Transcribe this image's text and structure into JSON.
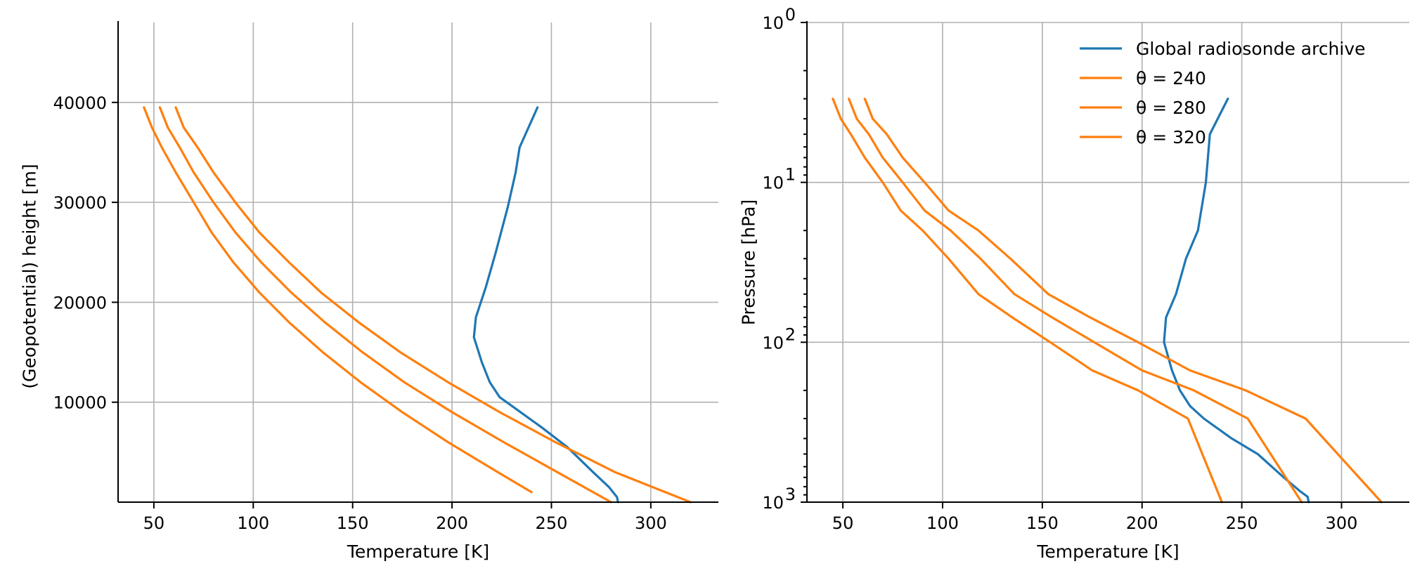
{
  "colors": {
    "sounding": "#1f77b4",
    "dry_adiabat": "#ff7f0e",
    "grid": "#b0b0b0"
  },
  "chart_data": [
    {
      "type": "line",
      "xlabel": "Temperature [K]",
      "ylabel": "(Geopotential) height [m]",
      "xlim": [
        32,
        334
      ],
      "ylim": [
        0,
        48000
      ],
      "x_ticks": [
        50,
        100,
        150,
        200,
        250,
        300
      ],
      "y_ticks": [
        10000,
        20000,
        30000,
        40000
      ],
      "grid": true,
      "series": [
        {
          "name": "Global radiosonde archive",
          "color": "#1f77b4",
          "points": [
            [
              283.5,
              0
            ],
            [
              283,
              500
            ],
            [
              279,
              1500
            ],
            [
              271,
              3000
            ],
            [
              258,
              5500
            ],
            [
              245,
              7500
            ],
            [
              231,
              9500
            ],
            [
              224,
              10500
            ],
            [
              219,
              12000
            ],
            [
              215,
              14000
            ],
            [
              211,
              16500
            ],
            [
              212,
              18500
            ],
            [
              217,
              21500
            ],
            [
              222,
              25000
            ],
            [
              228,
              29500
            ],
            [
              232,
              33000
            ],
            [
              234,
              35500
            ],
            [
              243,
              39500
            ]
          ]
        },
        {
          "name": "θ = 240",
          "color": "#ff7f0e",
          "points": [
            [
              45,
              39500
            ],
            [
              49,
              37500
            ],
            [
              54,
              35500
            ],
            [
              61,
              33000
            ],
            [
              70,
              30000
            ],
            [
              79,
              27000
            ],
            [
              90,
              24000
            ],
            [
              103,
              21000
            ],
            [
              118,
              18000
            ],
            [
              135,
              15000
            ],
            [
              154,
              12000
            ],
            [
              175,
              9000
            ],
            [
              198,
              6000
            ],
            [
              223,
              3000
            ],
            [
              240,
              1000
            ]
          ]
        },
        {
          "name": "θ = 280",
          "color": "#ff7f0e",
          "points": [
            [
              53,
              39500
            ],
            [
              57,
              37500
            ],
            [
              63,
              35500
            ],
            [
              70,
              33000
            ],
            [
              80,
              30000
            ],
            [
              91,
              27000
            ],
            [
              104,
              24000
            ],
            [
              119,
              21000
            ],
            [
              136,
              18000
            ],
            [
              155,
              15000
            ],
            [
              176,
              12000
            ],
            [
              200,
              9000
            ],
            [
              226,
              6000
            ],
            [
              253,
              3000
            ],
            [
              280,
              0
            ]
          ]
        },
        {
          "name": "θ = 320",
          "color": "#ff7f0e",
          "points": [
            [
              61,
              39500
            ],
            [
              65,
              37500
            ],
            [
              72,
              35500
            ],
            [
              80,
              33000
            ],
            [
              91,
              30000
            ],
            [
              103,
              27000
            ],
            [
              118,
              24000
            ],
            [
              134,
              21000
            ],
            [
              153,
              18000
            ],
            [
              174,
              15000
            ],
            [
              198,
              12000
            ],
            [
              224,
              9000
            ],
            [
              252,
              6000
            ],
            [
              282,
              3000
            ],
            [
              320,
              0
            ]
          ]
        }
      ]
    },
    {
      "type": "line",
      "xlabel": "Temperature [K]",
      "ylabel": "Pressure [hPa]",
      "xlim": [
        32,
        334
      ],
      "ylim": [
        1000,
        1
      ],
      "y_scale": "log",
      "y_inverted": true,
      "x_ticks": [
        50,
        100,
        150,
        200,
        250,
        300
      ],
      "y_ticks": [
        {
          "base": "10",
          "exp": "0",
          "value": 1
        },
        {
          "base": "10",
          "exp": "1",
          "value": 10
        },
        {
          "base": "10",
          "exp": "2",
          "value": 100
        },
        {
          "base": "10",
          "exp": "3",
          "value": 1000
        }
      ],
      "grid": true,
      "legend": {
        "placement": "top-right",
        "entries": [
          {
            "label": "Global radiosonde archive",
            "color": "#1f77b4"
          },
          {
            "label": "θ = 240",
            "color": "#ff7f0e"
          },
          {
            "label": "θ = 280",
            "color": "#ff7f0e"
          },
          {
            "label": "θ = 320",
            "color": "#ff7f0e"
          }
        ]
      },
      "series": [
        {
          "name": "Global radiosonde archive",
          "color": "#1f77b4",
          "points": [
            [
              283.5,
              1000
            ],
            [
              283,
              925
            ],
            [
              279,
              850
            ],
            [
              271,
              700
            ],
            [
              258,
              500
            ],
            [
              245,
              400
            ],
            [
              231,
              300
            ],
            [
              224,
              250
            ],
            [
              219,
              200
            ],
            [
              215,
              150
            ],
            [
              211,
              100
            ],
            [
              212,
              70
            ],
            [
              217,
              50
            ],
            [
              222,
              30
            ],
            [
              228,
              20
            ],
            [
              232,
              10
            ],
            [
              234,
              5
            ],
            [
              243,
              3
            ]
          ]
        },
        {
          "name": "θ = 240",
          "color": "#ff7f0e",
          "points": [
            [
              45,
              3
            ],
            [
              49,
              4
            ],
            [
              54,
              5
            ],
            [
              61,
              7
            ],
            [
              70,
              10
            ],
            [
              79,
              15
            ],
            [
              90,
              20
            ],
            [
              103,
              30
            ],
            [
              118,
              50
            ],
            [
              135,
              70
            ],
            [
              154,
              100
            ],
            [
              175,
              150
            ],
            [
              198,
              200
            ],
            [
              223,
              300
            ],
            [
              240,
              1000
            ]
          ]
        },
        {
          "name": "θ = 280",
          "color": "#ff7f0e",
          "points": [
            [
              53,
              3
            ],
            [
              57,
              4
            ],
            [
              63,
              5
            ],
            [
              70,
              7
            ],
            [
              80,
              10
            ],
            [
              91,
              15
            ],
            [
              104,
              20
            ],
            [
              119,
              30
            ],
            [
              136,
              50
            ],
            [
              155,
              70
            ],
            [
              176,
              100
            ],
            [
              200,
              150
            ],
            [
              226,
              200
            ],
            [
              253,
              300
            ],
            [
              280,
              1000
            ]
          ]
        },
        {
          "name": "θ = 320",
          "color": "#ff7f0e",
          "points": [
            [
              61,
              3
            ],
            [
              65,
              4
            ],
            [
              72,
              5
            ],
            [
              80,
              7
            ],
            [
              91,
              10
            ],
            [
              103,
              15
            ],
            [
              118,
              20
            ],
            [
              134,
              30
            ],
            [
              153,
              50
            ],
            [
              174,
              70
            ],
            [
              198,
              100
            ],
            [
              224,
              150
            ],
            [
              252,
              200
            ],
            [
              282,
              300
            ],
            [
              320,
              1000
            ]
          ]
        }
      ]
    }
  ]
}
